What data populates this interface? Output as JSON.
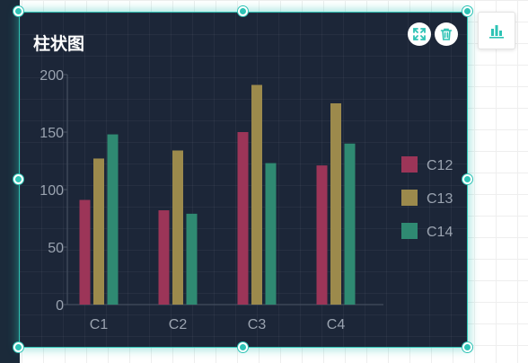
{
  "widget": {
    "title": "柱状图"
  },
  "icons": {
    "expand": "expand-icon",
    "delete": "trash-icon",
    "side_tool": "bar-chart-icon"
  },
  "colors": {
    "accent": "#2ec3b5",
    "panel_bg": "#1c2638",
    "axis_text": "#9aa3b0"
  },
  "chart_data": {
    "type": "bar",
    "title": "",
    "xlabel": "",
    "ylabel": "",
    "categories": [
      "C1",
      "C2",
      "C3",
      "C4"
    ],
    "ylim": [
      0,
      200
    ],
    "yticks": [
      0,
      50,
      100,
      150,
      200
    ],
    "grid": false,
    "legend_position": "right",
    "series": [
      {
        "name": "C12",
        "color": "#9c3558",
        "values": [
          91,
          82,
          150,
          121
        ]
      },
      {
        "name": "C13",
        "color": "#9c8a4c",
        "values": [
          127,
          134,
          191,
          175
        ]
      },
      {
        "name": "C14",
        "color": "#2f8a72",
        "values": [
          148,
          79,
          123,
          140
        ]
      }
    ]
  }
}
